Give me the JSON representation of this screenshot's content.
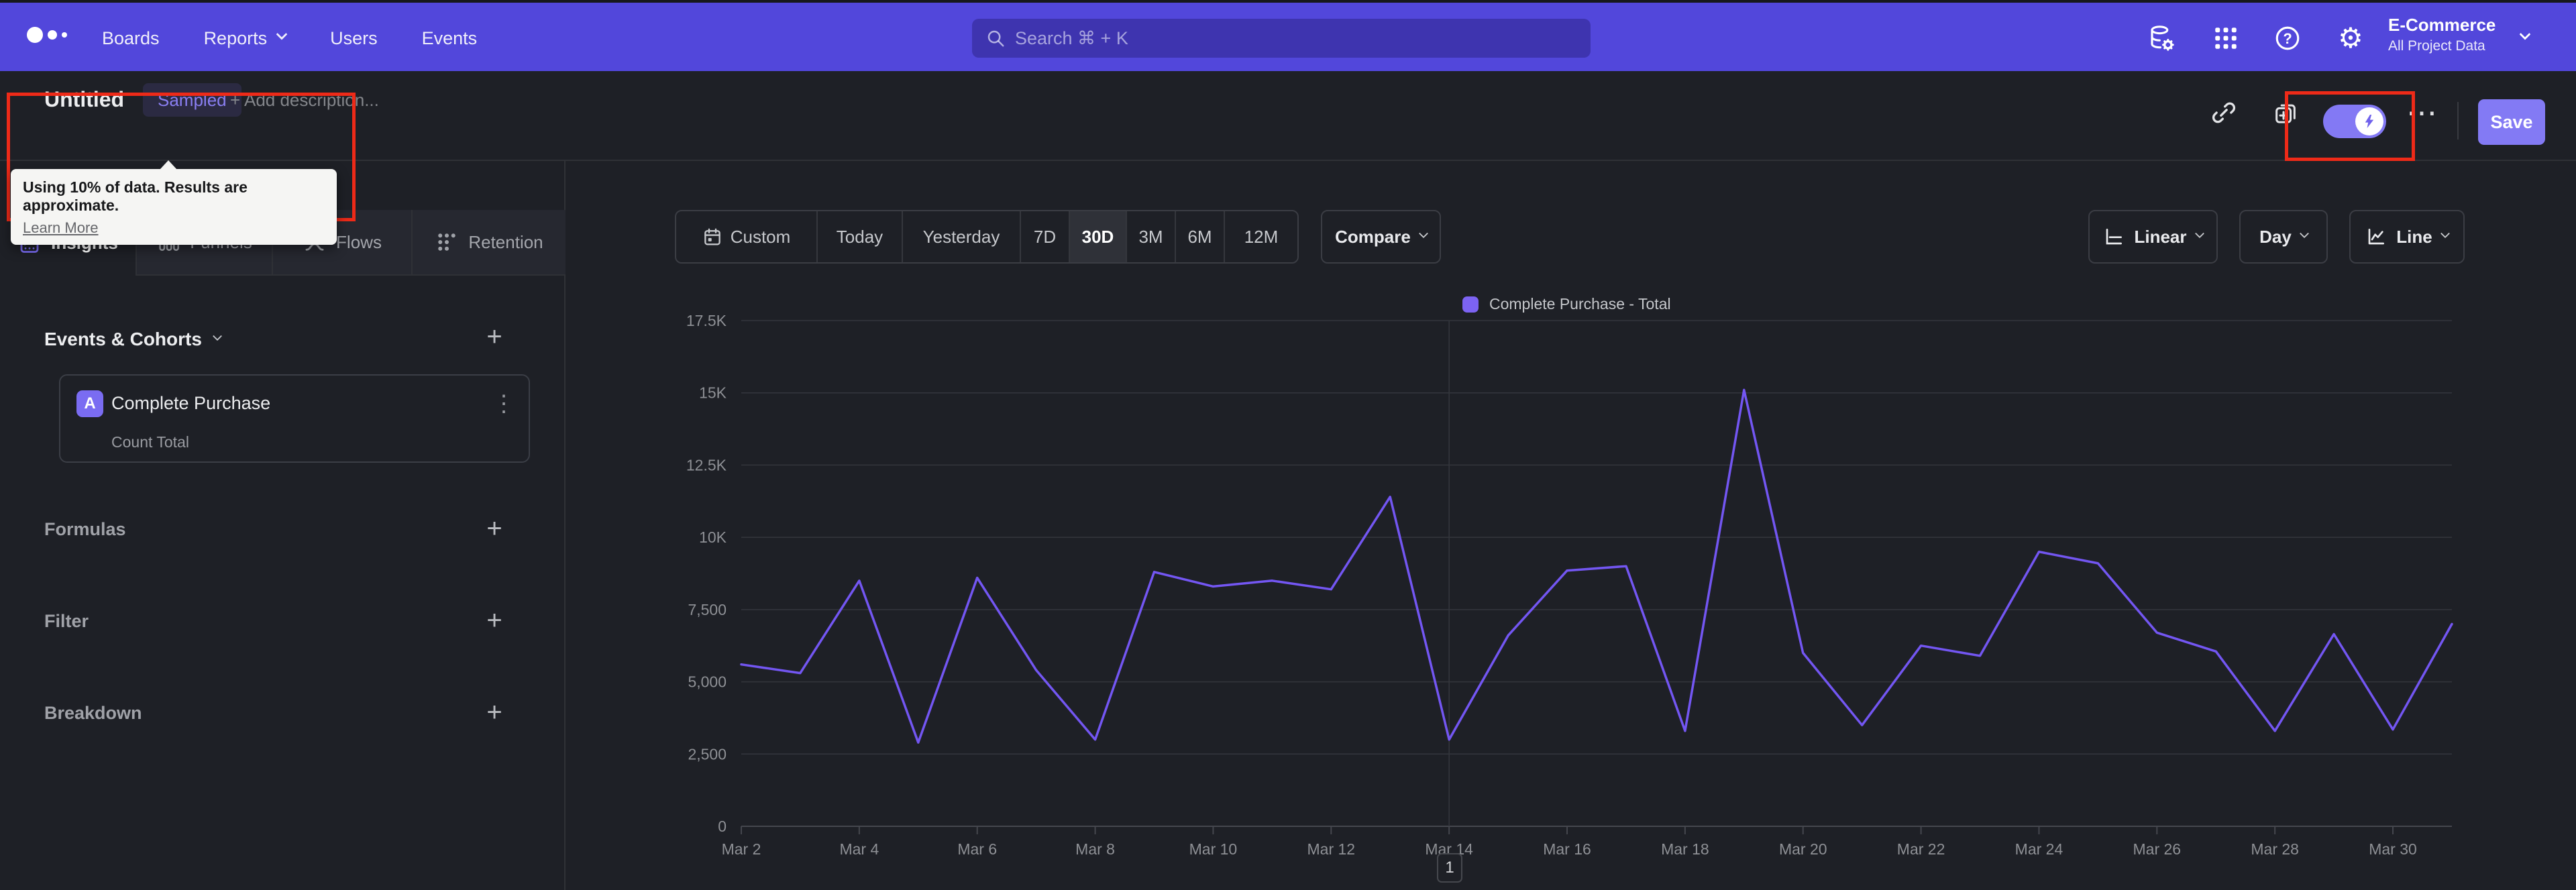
{
  "nav": {
    "items": [
      "Boards",
      "Reports",
      "Users",
      "Events"
    ],
    "search_placeholder": "Search  ⌘ + K",
    "icons": [
      "data-management",
      "apps-grid",
      "help",
      "settings"
    ],
    "project": {
      "name": "E-Commerce",
      "scope": "All Project Data"
    }
  },
  "toolbar": {
    "title": "Untitled",
    "badge": "Sampled",
    "add_description": "+ Add description...",
    "save_label": "Save",
    "sampling_tooltip": {
      "message": "Using 10% of data. Results are approximate.",
      "link_label": "Learn More"
    },
    "icons": [
      "link",
      "add-to-board",
      "sampling-toggle",
      "more-options"
    ]
  },
  "sidebar": {
    "tabs": [
      "Insights",
      "Funnels",
      "Flows",
      "Retention"
    ],
    "active_tab": "Insights",
    "events_header": "Events & Cohorts",
    "event_card": {
      "series_letter": "A",
      "event_name": "Complete Purchase",
      "aggregation": "Count Total"
    },
    "sections": [
      "Formulas",
      "Filter",
      "Breakdown"
    ]
  },
  "controls": {
    "ranges": [
      "Custom",
      "Today",
      "Yesterday",
      "7D",
      "30D",
      "3M",
      "6M",
      "12M"
    ],
    "selected_range": "30D",
    "compare_label": "Compare",
    "scale_label": "Linear",
    "interval_label": "Day",
    "chart_type_label": "Line"
  },
  "chart_data": {
    "type": "line",
    "title": "",
    "legend": [
      {
        "label": "Complete Purchase - Total",
        "color": "#7C63F2"
      }
    ],
    "legend_position": "top-center",
    "grid": true,
    "ylim": [
      0,
      17500
    ],
    "y_ticks": [
      {
        "value": 0,
        "label": "0"
      },
      {
        "value": 2500,
        "label": "2,500"
      },
      {
        "value": 5000,
        "label": "5,000"
      },
      {
        "value": 7500,
        "label": "7,500"
      },
      {
        "value": 10000,
        "label": "10K"
      },
      {
        "value": 12500,
        "label": "12.5K"
      },
      {
        "value": 15000,
        "label": "15K"
      },
      {
        "value": 17500,
        "label": "17.5K"
      }
    ],
    "x": [
      "Mar 2",
      "Mar 3",
      "Mar 4",
      "Mar 5",
      "Mar 6",
      "Mar 7",
      "Mar 8",
      "Mar 9",
      "Mar 10",
      "Mar 11",
      "Mar 12",
      "Mar 13",
      "Mar 14",
      "Mar 15",
      "Mar 16",
      "Mar 17",
      "Mar 18",
      "Mar 19",
      "Mar 20",
      "Mar 21",
      "Mar 22",
      "Mar 23",
      "Mar 24",
      "Mar 25",
      "Mar 26",
      "Mar 27",
      "Mar 28",
      "Mar 29",
      "Mar 30",
      "Mar 31"
    ],
    "values": [
      5600,
      5300,
      8500,
      2900,
      8600,
      5400,
      3000,
      8800,
      8300,
      8500,
      8200,
      11400,
      3000,
      6600,
      8850,
      9000,
      3300,
      15100,
      6000,
      3500,
      6250,
      5900,
      9500,
      9100,
      6700,
      6050,
      3300,
      6650,
      3350,
      7000
    ],
    "x_label_every": 2,
    "vertical_gridline_index": 12,
    "line_color": "#7356F2"
  },
  "pagination": {
    "current_page": "1"
  },
  "annotations": {
    "highlight_color": "#EE2A18",
    "regions": [
      "report-title-and-sampling-tooltip",
      "sampling-toggle"
    ]
  },
  "colors": {
    "nav_bg": "#5247DB",
    "page_bg": "#1E2026",
    "accent": "#7C6CF0",
    "save_bg": "#837AF4",
    "badge_bg": "#2B2A42",
    "badge_text": "#8A7FF2",
    "annotation_red": "#EE2A18"
  }
}
